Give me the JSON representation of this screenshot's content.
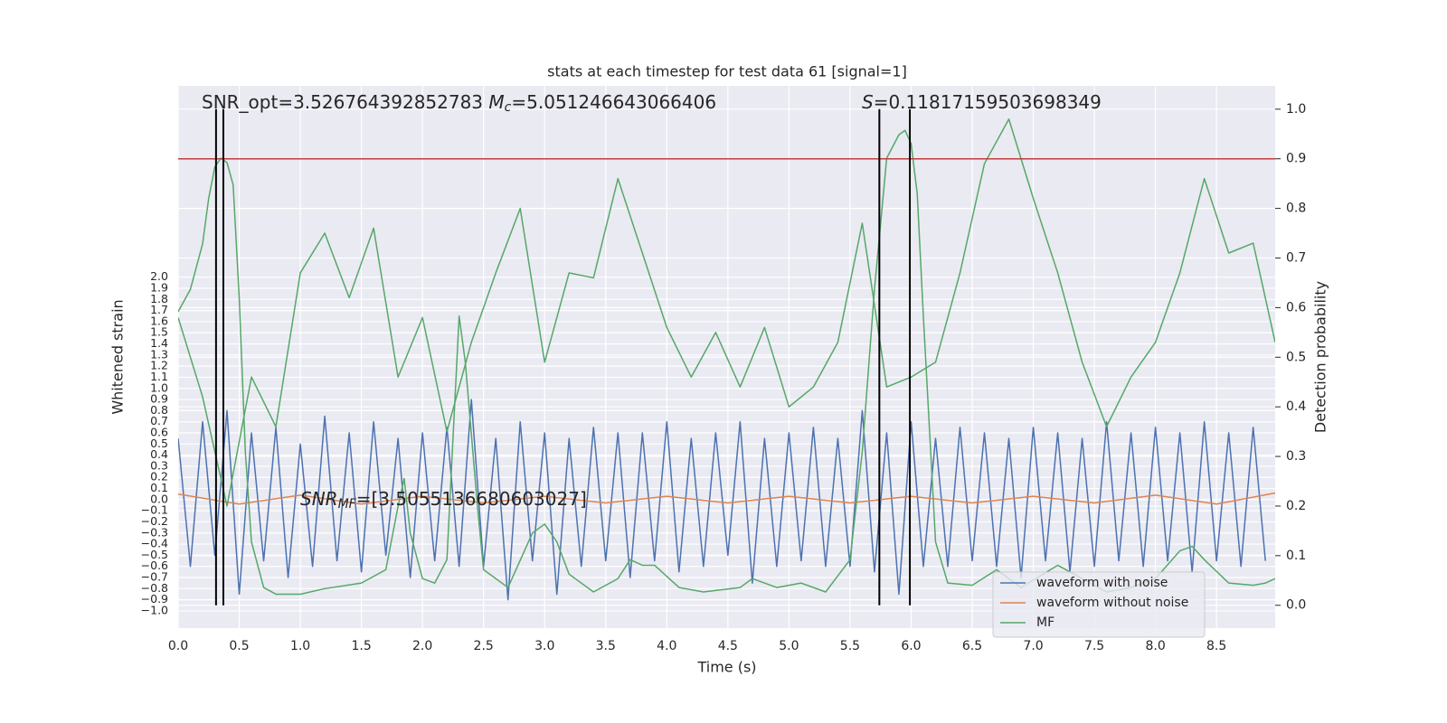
{
  "chart_data": {
    "type": "line",
    "title": "stats at each timestep for test data 61 [signal=1]",
    "xlabel": "Time (s)",
    "ylabel": "Whitened strain",
    "y2label": "Detection probability",
    "xlim": [
      0,
      8.98
    ],
    "xticks": [
      {
        "value": 0,
        "label": "0.0"
      },
      {
        "value": 0.5,
        "label": "0.5"
      },
      {
        "value": 1,
        "label": "1.0"
      },
      {
        "value": 1.5,
        "label": "1.5"
      },
      {
        "value": 2,
        "label": "2.0"
      },
      {
        "value": 2.5,
        "label": "2.5"
      },
      {
        "value": 3,
        "label": "3.0"
      },
      {
        "value": 3.5,
        "label": "3.5"
      },
      {
        "value": 4,
        "label": "4.0"
      },
      {
        "value": 4.5,
        "label": "4.5"
      },
      {
        "value": 5,
        "label": "5.0"
      },
      {
        "value": 5.5,
        "label": "5.5"
      },
      {
        "value": 6,
        "label": "6.0"
      },
      {
        "value": 6.5,
        "label": "6.5"
      },
      {
        "value": 7,
        "label": "7.0"
      },
      {
        "value": 7.5,
        "label": "7.5"
      },
      {
        "value": 8,
        "label": "8.0"
      },
      {
        "value": 8.5,
        "label": "8.5"
      }
    ],
    "ylim": [
      -1.155,
      3.72
    ],
    "yticks": [
      {
        "value": -1.0,
        "label": "−1.0"
      },
      {
        "value": -0.9,
        "label": "−0.9"
      },
      {
        "value": -0.8,
        "label": "−0.8"
      },
      {
        "value": -0.7,
        "label": "−0.7"
      },
      {
        "value": -0.6,
        "label": "−0.6"
      },
      {
        "value": -0.5,
        "label": "−0.5"
      },
      {
        "value": -0.4,
        "label": "−0.4"
      },
      {
        "value": -0.3,
        "label": "−0.3"
      },
      {
        "value": -0.2,
        "label": "−0.2"
      },
      {
        "value": -0.1,
        "label": "−0.1"
      },
      {
        "value": 0,
        "label": "0.0"
      },
      {
        "value": 0.1,
        "label": "0.1"
      },
      {
        "value": 0.2,
        "label": "0.2"
      },
      {
        "value": 0.3,
        "label": "0.3"
      },
      {
        "value": 0.4,
        "label": "0.4"
      },
      {
        "value": 0.5,
        "label": "0.5"
      },
      {
        "value": 0.6,
        "label": "0.6"
      },
      {
        "value": 0.7,
        "label": "0.7"
      },
      {
        "value": 0.8,
        "label": "0.8"
      },
      {
        "value": 0.9,
        "label": "0.9"
      },
      {
        "value": 1.0,
        "label": "1.0"
      },
      {
        "value": 1.1,
        "label": "1.1"
      },
      {
        "value": 1.2,
        "label": "1.2"
      },
      {
        "value": 1.3,
        "label": "1.3"
      },
      {
        "value": 1.4,
        "label": "1.4"
      },
      {
        "value": 1.5,
        "label": "1.5"
      },
      {
        "value": 1.6,
        "label": "1.6"
      },
      {
        "value": 1.7,
        "label": "1.7"
      },
      {
        "value": 1.8,
        "label": "1.8"
      },
      {
        "value": 1.9,
        "label": "1.9"
      },
      {
        "value": 2.0,
        "label": "2.0"
      }
    ],
    "y2lim": [
      -0.046,
      1.047
    ],
    "y2ticks": [
      {
        "value": 0,
        "label": "0.0"
      },
      {
        "value": 0.1,
        "label": "0.1"
      },
      {
        "value": 0.2,
        "label": "0.2"
      },
      {
        "value": 0.3,
        "label": "0.3"
      },
      {
        "value": 0.4,
        "label": "0.4"
      },
      {
        "value": 0.5,
        "label": "0.5"
      },
      {
        "value": 0.6,
        "label": "0.6"
      },
      {
        "value": 0.7,
        "label": "0.7"
      },
      {
        "value": 0.8,
        "label": "0.8"
      },
      {
        "value": 0.9,
        "label": "0.9"
      },
      {
        "value": 1,
        "label": "1.0"
      }
    ],
    "grid": true,
    "legend": "lower right",
    "series": [
      {
        "name": "waveform with noise",
        "color": "#4c72b0",
        "x": [
          0,
          0.1,
          0.2,
          0.3,
          0.4,
          0.5,
          0.6,
          0.7,
          0.8,
          0.9,
          1,
          1.1,
          1.2,
          1.3,
          1.4,
          1.5,
          1.6,
          1.7,
          1.8,
          1.9,
          2,
          2.1,
          2.2,
          2.3,
          2.4,
          2.5,
          2.6,
          2.7,
          2.8,
          2.9,
          3,
          3.1,
          3.2,
          3.3,
          3.4,
          3.5,
          3.6,
          3.7,
          3.8,
          3.9,
          4,
          4.1,
          4.2,
          4.3,
          4.4,
          4.5,
          4.6,
          4.7,
          4.8,
          4.9,
          5,
          5.1,
          5.2,
          5.3,
          5.4,
          5.5,
          5.6,
          5.7,
          5.8,
          5.9,
          6,
          6.1,
          6.2,
          6.3,
          6.4,
          6.5,
          6.6,
          6.7,
          6.8,
          6.9,
          7,
          7.1,
          7.2,
          7.3,
          7.4,
          7.5,
          7.6,
          7.7,
          7.8,
          7.9,
          8,
          8.1,
          8.2,
          8.3,
          8.4,
          8.5,
          8.6,
          8.7,
          8.8,
          8.9
        ],
        "values": [
          0.55,
          -0.6,
          0.7,
          -0.5,
          0.8,
          -0.85,
          0.6,
          -0.55,
          0.65,
          -0.7,
          0.5,
          -0.6,
          0.75,
          -0.55,
          0.6,
          -0.65,
          0.7,
          -0.5,
          0.55,
          -0.7,
          0.6,
          -0.55,
          0.65,
          -0.6,
          0.9,
          -0.6,
          0.55,
          -0.9,
          0.7,
          -0.55,
          0.6,
          -0.85,
          0.55,
          -0.6,
          0.65,
          -0.55,
          0.6,
          -0.7,
          0.6,
          -0.55,
          0.7,
          -0.65,
          0.55,
          -0.6,
          0.6,
          -0.5,
          0.7,
          -0.75,
          0.55,
          -0.6,
          0.6,
          -0.55,
          0.65,
          -0.6,
          0.55,
          -0.6,
          0.8,
          -0.65,
          0.6,
          -0.85,
          0.7,
          -0.6,
          0.55,
          -0.6,
          0.65,
          -0.55,
          0.6,
          -0.6,
          0.55,
          -0.7,
          0.65,
          -0.55,
          0.6,
          -0.65,
          0.55,
          -0.6,
          0.7,
          -0.55,
          0.6,
          -0.6,
          0.65,
          -0.55,
          0.6,
          -0.65,
          0.7,
          -0.55,
          0.6,
          -0.6,
          0.65,
          -0.55
        ]
      },
      {
        "name": "waveform without noise",
        "color": "#dd8452",
        "x": [
          0,
          0.5,
          1,
          1.5,
          2,
          2.5,
          3,
          3.5,
          4,
          4.5,
          5,
          5.5,
          6,
          6.5,
          7,
          7.5,
          8,
          8.5,
          8.98
        ],
        "values": [
          0.05,
          -0.04,
          0.04,
          -0.04,
          0.03,
          -0.03,
          0.03,
          -0.03,
          0.03,
          -0.03,
          0.03,
          -0.03,
          0.03,
          -0.03,
          0.03,
          -0.03,
          0.04,
          -0.04,
          0.06
        ]
      },
      {
        "name": "MF",
        "color": "#55a868",
        "x": [
          0,
          0.1,
          0.2,
          0.25,
          0.3,
          0.35,
          0.4,
          0.45,
          0.5,
          0.55,
          0.6,
          0.7,
          0.8,
          1.0,
          1.2,
          1.5,
          1.7,
          1.8,
          1.85,
          1.9,
          2.0,
          2.1,
          2.2,
          2.3,
          2.35,
          2.45,
          2.5,
          2.7,
          2.9,
          3.0,
          3.1,
          3.2,
          3.4,
          3.6,
          3.7,
          3.8,
          3.9,
          4.1,
          4.3,
          4.6,
          4.7,
          4.9,
          5.1,
          5.3,
          5.5,
          5.6,
          5.7,
          5.8,
          5.9,
          5.95,
          6.0,
          6.05,
          6.1,
          6.2,
          6.3,
          6.5,
          6.7,
          6.9,
          7.2,
          7.4,
          7.6,
          7.8,
          8.0,
          8.2,
          8.3,
          8.4,
          8.6,
          8.8,
          8.9,
          8.98
        ],
        "values": [
          1.69,
          1.89,
          2.3,
          2.71,
          2.99,
          3.07,
          3.03,
          2.83,
          1.81,
          0.43,
          -0.38,
          -0.79,
          -0.85,
          -0.85,
          -0.8,
          -0.75,
          -0.63,
          -0.06,
          0.19,
          -0.3,
          -0.71,
          -0.75,
          -0.54,
          1.65,
          1.24,
          -0.06,
          -0.63,
          -0.79,
          -0.3,
          -0.22,
          -0.38,
          -0.67,
          -0.83,
          -0.71,
          -0.54,
          -0.59,
          -0.59,
          -0.79,
          -0.83,
          -0.79,
          -0.71,
          -0.79,
          -0.75,
          -0.83,
          -0.54,
          0.43,
          1.89,
          3.07,
          3.28,
          3.32,
          3.2,
          2.75,
          1.65,
          -0.38,
          -0.75,
          -0.77,
          -0.63,
          -0.79,
          -0.59,
          -0.71,
          -0.83,
          -0.79,
          -0.71,
          -0.46,
          -0.42,
          -0.54,
          -0.75,
          -0.77,
          -0.75,
          -0.71
        ]
      },
      {
        "color": "#55a868",
        "axis": "y2",
        "x": [
          0,
          0.2,
          0.4,
          0.6,
          0.8,
          1,
          1.2,
          1.4,
          1.6,
          1.8,
          2,
          2.2,
          2.4,
          2.6,
          2.8,
          3,
          3.2,
          3.4,
          3.6,
          3.8,
          4,
          4.2,
          4.4,
          4.6,
          4.8,
          5,
          5.2,
          5.4,
          5.6,
          5.8,
          6,
          6.2,
          6.4,
          6.6,
          6.8,
          7,
          7.2,
          7.4,
          7.6,
          7.8,
          8,
          8.2,
          8.4,
          8.6,
          8.8,
          8.98
        ],
        "values": [
          0.58,
          0.42,
          0.2,
          0.46,
          0.36,
          0.67,
          0.75,
          0.62,
          0.76,
          0.46,
          0.58,
          0.35,
          0.53,
          0.67,
          0.8,
          0.49,
          0.67,
          0.66,
          0.86,
          0.71,
          0.56,
          0.46,
          0.55,
          0.44,
          0.56,
          0.4,
          0.44,
          0.53,
          0.77,
          0.44,
          0.46,
          0.49,
          0.67,
          0.89,
          0.98,
          0.82,
          0.67,
          0.49,
          0.36,
          0.46,
          0.53,
          0.67,
          0.86,
          0.71,
          0.73,
          0.53
        ]
      }
    ],
    "hlines": [
      {
        "y": 0.9,
        "axis": "y2",
        "color": "#c03d3e"
      }
    ],
    "vlines": {
      "x": [
        0.31,
        0.37,
        5.74,
        5.99
      ],
      "ymin": 0,
      "ymax": 1,
      "axis": "y2",
      "color": "#000000"
    },
    "annotations": [
      {
        "parts": [
          "SNR_opt=3.526764392852783 ",
          "M",
          "c",
          "=5.051246643066406"
        ]
      },
      {
        "parts": [
          "S",
          "=0.11817159503698349"
        ]
      },
      {
        "parts": [
          "SNR",
          "MF",
          "=[3.5055136680603027]"
        ]
      }
    ]
  }
}
